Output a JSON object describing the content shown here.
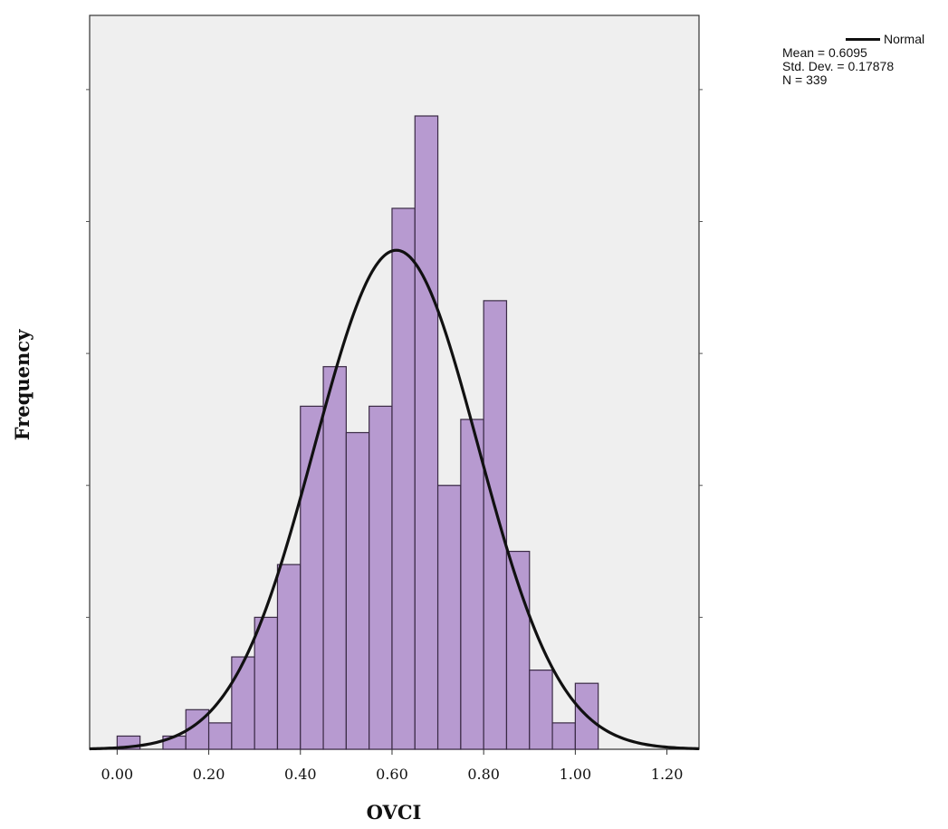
{
  "chart_data": {
    "type": "bar",
    "title": "",
    "xlabel": "OVCI",
    "ylabel": "Frequency",
    "xlim": [
      -0.06,
      1.27
    ],
    "ylim": [
      0,
      48
    ],
    "x_ticks": [
      "0.00",
      "0.20",
      "0.40",
      "0.60",
      "0.80",
      "1.00",
      "1.20"
    ],
    "x_tick_values": [
      0.0,
      0.2,
      0.4,
      0.6,
      0.8,
      1.0,
      1.2
    ],
    "y_tick_values": [
      10,
      20,
      30,
      40,
      50
    ],
    "bin_width": 0.05,
    "bins": [
      {
        "start": 0.0,
        "count": 1
      },
      {
        "start": 0.1,
        "count": 1
      },
      {
        "start": 0.15,
        "count": 3
      },
      {
        "start": 0.2,
        "count": 2
      },
      {
        "start": 0.25,
        "count": 7
      },
      {
        "start": 0.3,
        "count": 10
      },
      {
        "start": 0.35,
        "count": 14
      },
      {
        "start": 0.4,
        "count": 26
      },
      {
        "start": 0.45,
        "count": 29
      },
      {
        "start": 0.5,
        "count": 24
      },
      {
        "start": 0.55,
        "count": 26
      },
      {
        "start": 0.6,
        "count": 41
      },
      {
        "start": 0.65,
        "count": 48
      },
      {
        "start": 0.7,
        "count": 20
      },
      {
        "start": 0.75,
        "count": 25
      },
      {
        "start": 0.8,
        "count": 34
      },
      {
        "start": 0.85,
        "count": 15
      },
      {
        "start": 0.9,
        "count": 6
      },
      {
        "start": 0.95,
        "count": 2
      },
      {
        "start": 1.0,
        "count": 5
      }
    ],
    "normal_curve": {
      "mean": 0.6095,
      "std": 0.17878,
      "n": 339
    },
    "legend": {
      "position": "top-right",
      "line_label": "Normal",
      "mean_label": "Mean = 0.6095",
      "std_label": "Std. Dev. = 0.17878",
      "n_label": "N = 339"
    },
    "colors": {
      "bar_fill": "#b79ad0",
      "bar_stroke": "#3a2a45",
      "plot_bg": "#efefef",
      "curve": "#111111"
    }
  }
}
